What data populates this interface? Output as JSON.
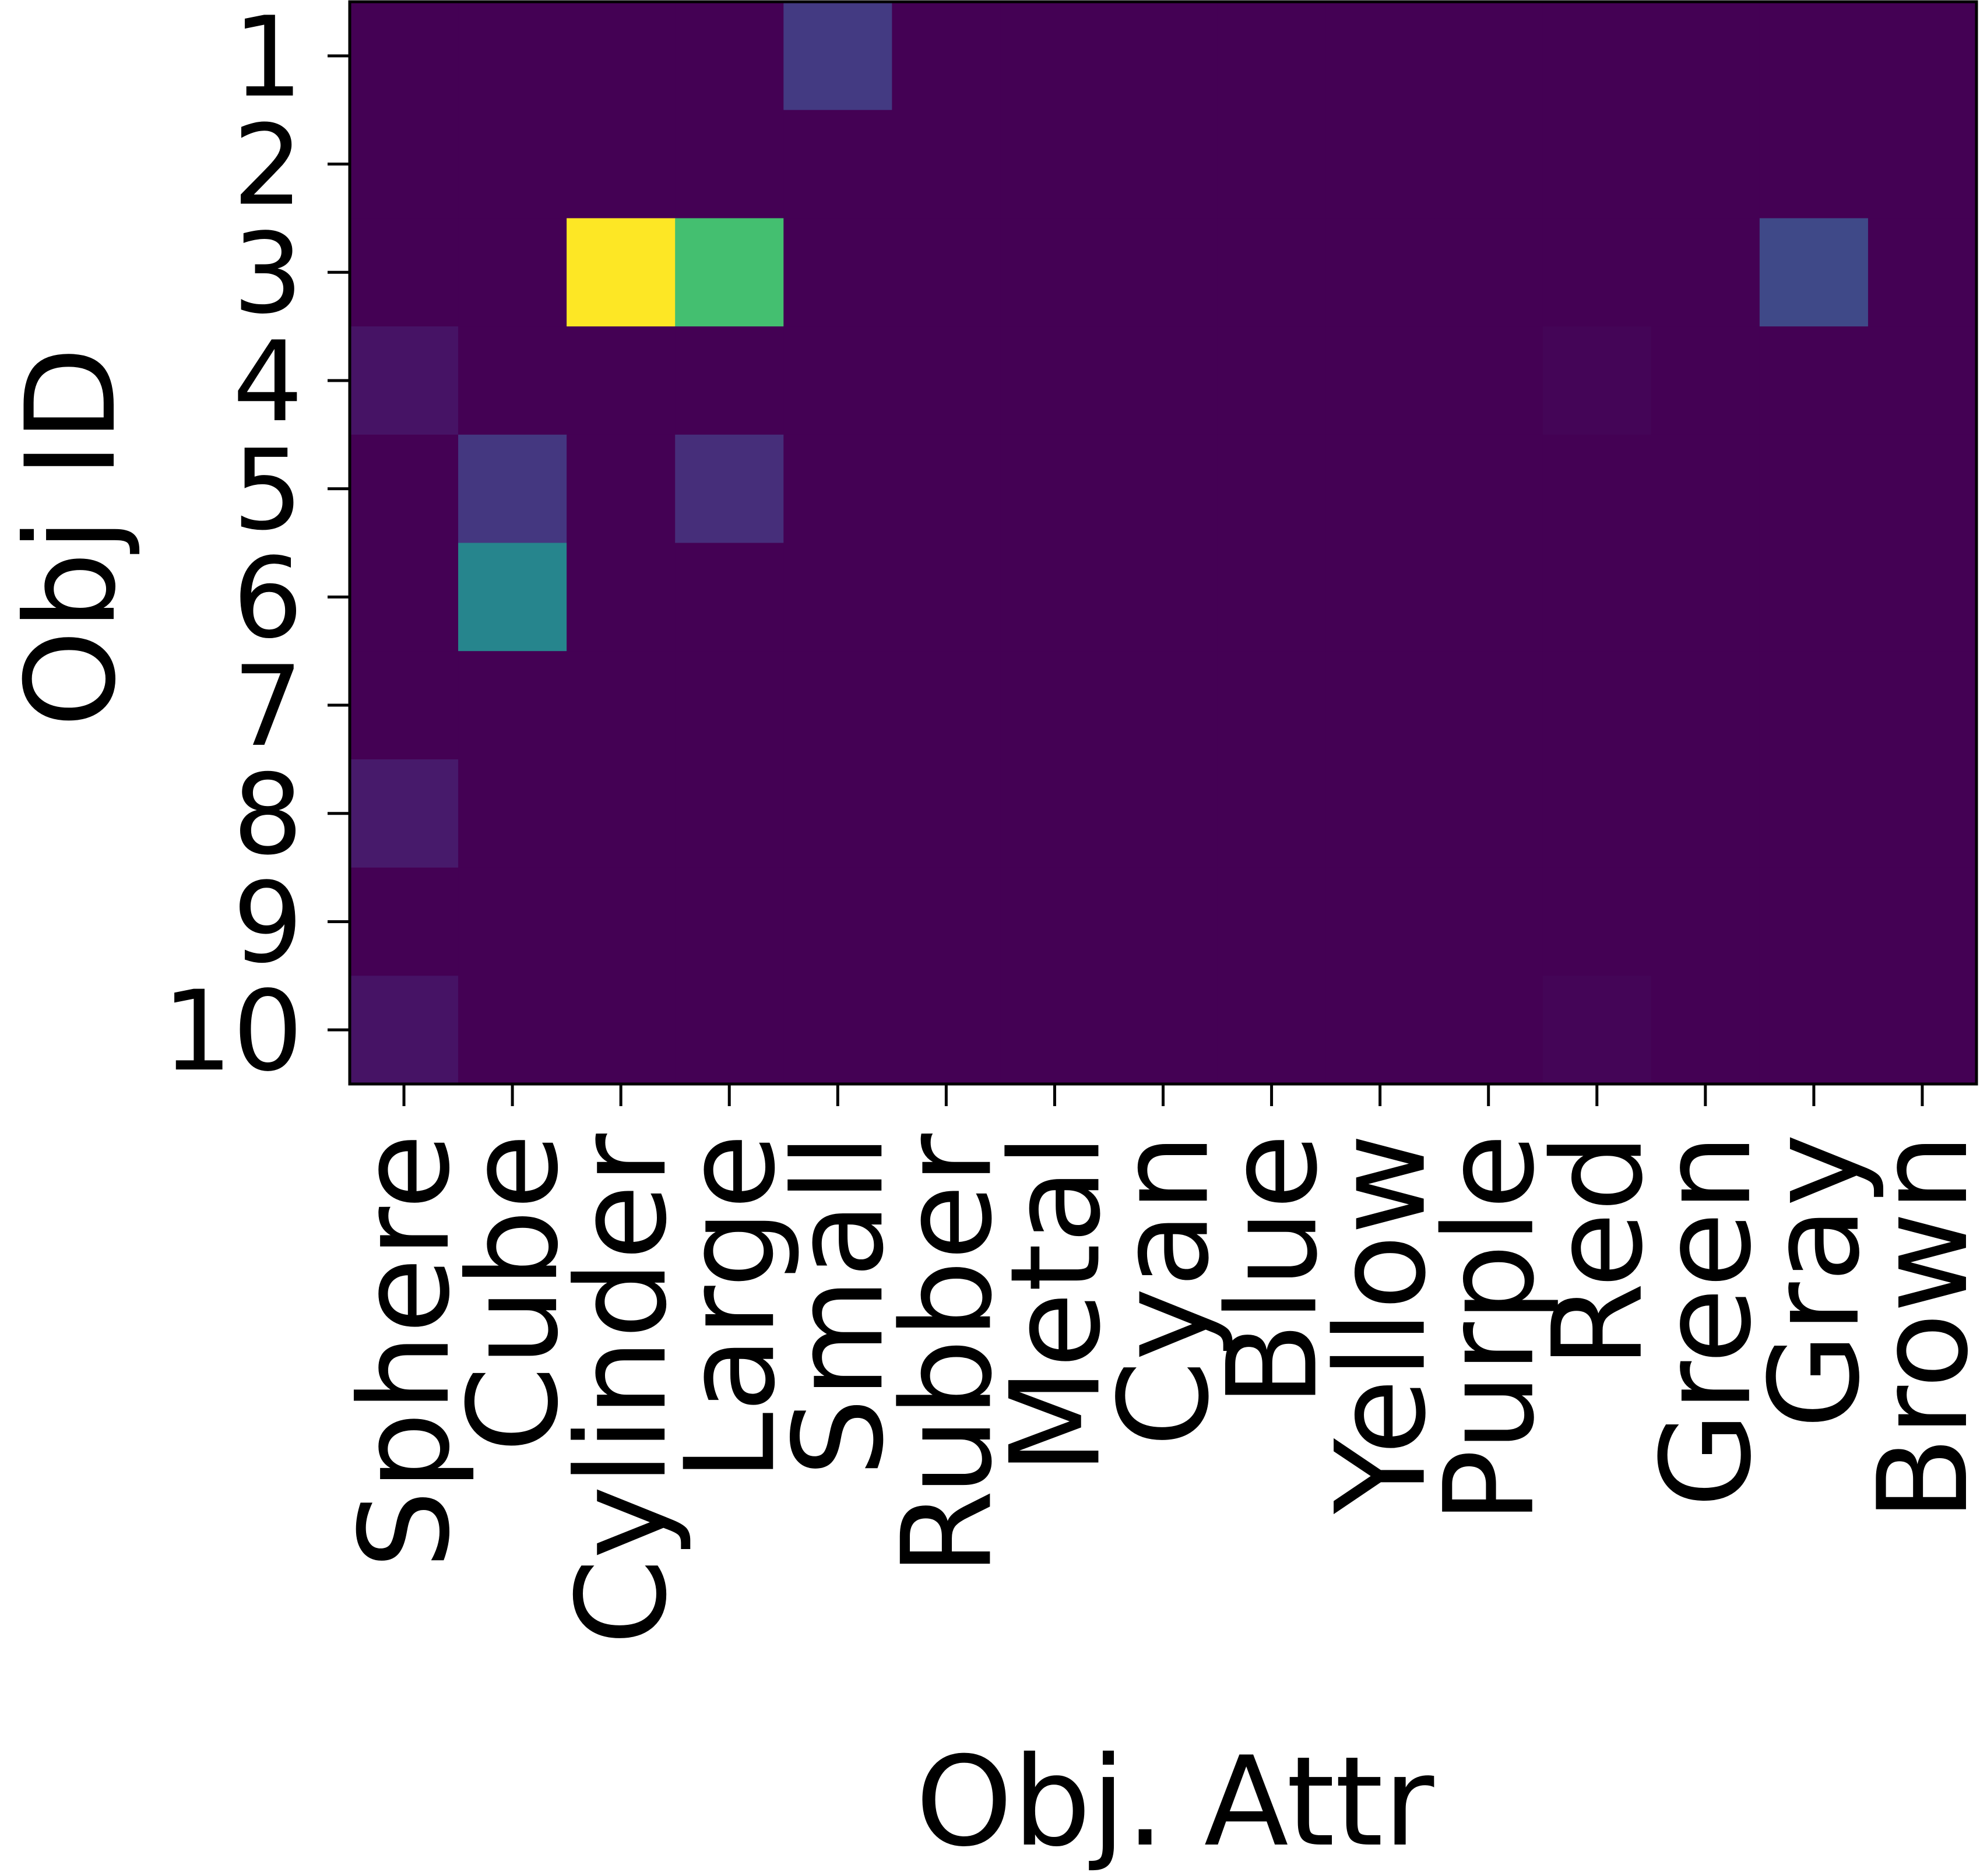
{
  "chart_data": {
    "type": "heatmap",
    "title": "",
    "xlabel": "Obj. Attr",
    "ylabel": "Obj ID",
    "x_categories": [
      "Sphere",
      "Cube",
      "Cylinder",
      "Large",
      "Small",
      "Rubber",
      "Metal",
      "Cyan",
      "Blue",
      "Yellow",
      "Purple",
      "Red",
      "Green",
      "Gray",
      "Brown"
    ],
    "y_categories": [
      "1",
      "2",
      "3",
      "4",
      "5",
      "6",
      "7",
      "8",
      "9",
      "10"
    ],
    "value_range": [
      0,
      1
    ],
    "colormap": "viridis",
    "values": [
      [
        0.0,
        0.0,
        0.0,
        0.0,
        0.17,
        0.0,
        0.0,
        0.0,
        0.0,
        0.0,
        0.0,
        0.0,
        0.0,
        0.0,
        0.0
      ],
      [
        0.0,
        0.0,
        0.0,
        0.0,
        0.0,
        0.0,
        0.0,
        0.0,
        0.0,
        0.0,
        0.0,
        0.0,
        0.0,
        0.0,
        0.0
      ],
      [
        0.0,
        0.0,
        1.0,
        0.7,
        0.0,
        0.0,
        0.0,
        0.0,
        0.0,
        0.0,
        0.0,
        0.0,
        0.0,
        0.22,
        0.0
      ],
      [
        0.05,
        0.0,
        0.0,
        0.0,
        0.0,
        0.0,
        0.0,
        0.0,
        0.0,
        0.0,
        0.0,
        0.01,
        0.0,
        0.0,
        0.0
      ],
      [
        0.0,
        0.16,
        0.0,
        0.13,
        0.0,
        0.0,
        0.0,
        0.0,
        0.0,
        0.0,
        0.0,
        0.0,
        0.0,
        0.0,
        0.0
      ],
      [
        0.0,
        0.45,
        0.0,
        0.0,
        0.0,
        0.0,
        0.0,
        0.0,
        0.0,
        0.0,
        0.0,
        0.0,
        0.0,
        0.0,
        0.0
      ],
      [
        0.0,
        0.0,
        0.0,
        0.0,
        0.0,
        0.0,
        0.0,
        0.0,
        0.0,
        0.0,
        0.0,
        0.0,
        0.0,
        0.0,
        0.0
      ],
      [
        0.07,
        0.0,
        0.0,
        0.0,
        0.0,
        0.0,
        0.0,
        0.0,
        0.0,
        0.0,
        0.0,
        0.0,
        0.0,
        0.0,
        0.0
      ],
      [
        0.0,
        0.0,
        0.0,
        0.0,
        0.0,
        0.0,
        0.0,
        0.0,
        0.0,
        0.0,
        0.0,
        0.0,
        0.0,
        0.0,
        0.0
      ],
      [
        0.05,
        0.0,
        0.0,
        0.0,
        0.0,
        0.0,
        0.0,
        0.0,
        0.0,
        0.0,
        0.0,
        0.01,
        0.0,
        0.0,
        0.0
      ]
    ],
    "grid": false,
    "legend": "none"
  }
}
